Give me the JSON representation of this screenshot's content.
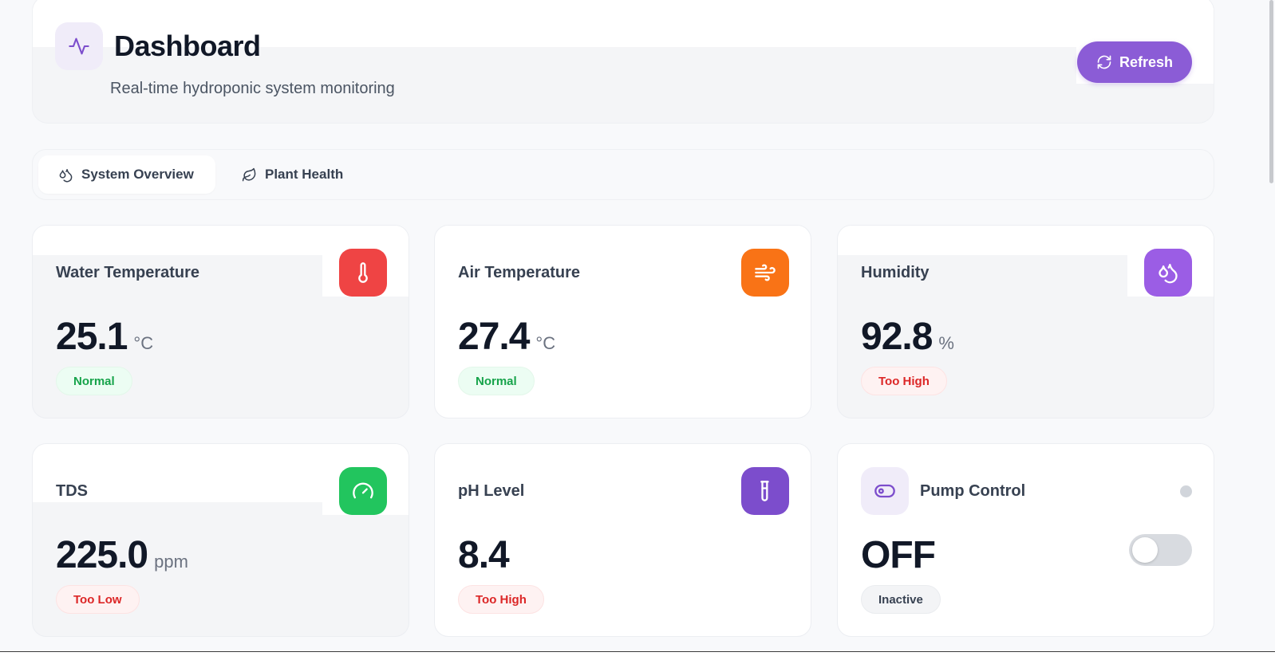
{
  "header": {
    "title": "Dashboard",
    "subtitle": "Real-time hydroponic system monitoring",
    "icon": "activity-icon",
    "refresh_label": "Refresh",
    "accent": "#8b5cd6"
  },
  "tabs": [
    {
      "label": "System Overview",
      "icon": "droplets-icon",
      "active": true
    },
    {
      "label": "Plant Health",
      "icon": "leaf-icon",
      "active": false
    }
  ],
  "metrics": [
    {
      "title": "Water Temperature",
      "value": "25.1",
      "unit": "°C",
      "status": "Normal",
      "status_type": "ok",
      "icon": "thermometer-icon",
      "icon_color": "#ef4444"
    },
    {
      "title": "Air Temperature",
      "value": "27.4",
      "unit": "°C",
      "status": "Normal",
      "status_type": "ok",
      "icon": "wind-icon",
      "icon_color": "#f97316"
    },
    {
      "title": "Humidity",
      "value": "92.8",
      "unit": "%",
      "status": "Too High",
      "status_type": "warn",
      "icon": "droplets-icon",
      "icon_color": "#9b5de5"
    },
    {
      "title": "TDS",
      "value": "225.0",
      "unit": "ppm",
      "status": "Too Low",
      "status_type": "warn",
      "icon": "gauge-icon",
      "icon_color": "#22c55e"
    },
    {
      "title": "pH Level",
      "value": "8.4",
      "unit": "",
      "status": "Too High",
      "status_type": "warn",
      "icon": "test-tube-icon",
      "icon_color": "#7c4dcc"
    }
  ],
  "pump": {
    "title": "Pump Control",
    "value": "OFF",
    "status": "Inactive",
    "enabled": false,
    "icon": "toggle-icon"
  }
}
